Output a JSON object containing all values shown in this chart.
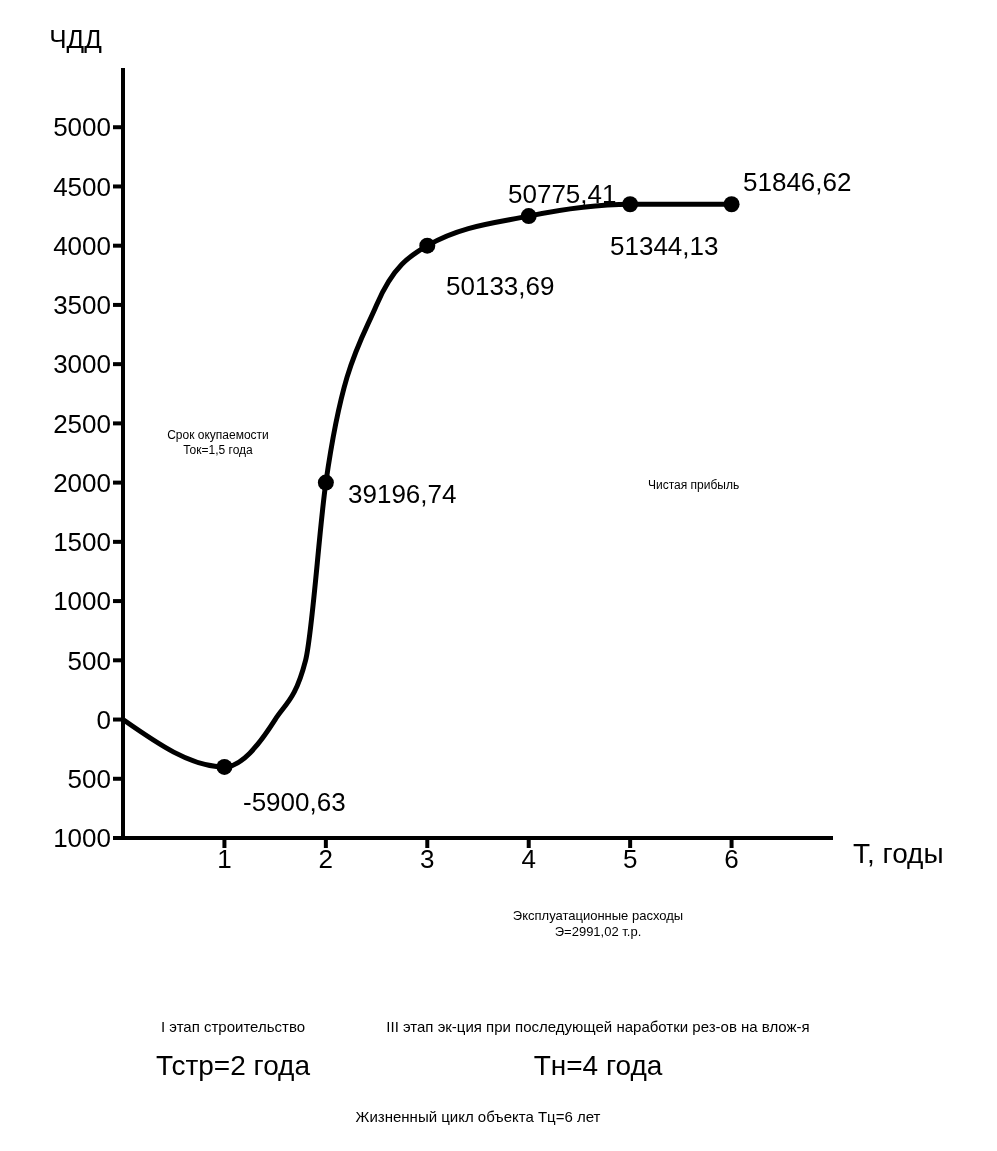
{
  "chart_data": {
    "type": "line",
    "xlabel": "Т, годы",
    "ylabel": "ЧДД",
    "x": [
      0,
      1,
      1.5,
      1.8,
      2,
      2.5,
      3,
      4,
      5,
      6
    ],
    "series": [
      {
        "color": "#000000",
        "values": [
          0,
          -400,
          0,
          500,
          2000,
          3500,
          4000,
          4250,
          4350,
          4350
        ]
      }
    ],
    "xlim": [
      0,
      7
    ],
    "xticks": [
      1,
      2,
      3,
      4,
      5,
      6
    ],
    "ylim": [
      -1000,
      5500
    ],
    "yticks": [
      {
        "value": -1000,
        "label": "1000"
      },
      {
        "value": -500,
        "label": "500"
      },
      0,
      500,
      1000,
      1500,
      2000,
      2500,
      3000,
      3500,
      4000,
      4500,
      5000
    ],
    "grid": false,
    "marker": "circle",
    "line_style": "solid",
    "legend": false,
    "annotations": [
      "Срок окупаемости\nТок=1,5 года",
      "Чистая прибыль",
      "Эксплуатационные расходы\nЭ=2991,02 т.р.",
      "I этап строительство",
      "III этап эк-ция при последующей наработки рез-ов на влож-я",
      "Тстр=2 года",
      "Тн=4 года",
      "Жизненный цикл объекта Тц=6 лет",
      "-5900,63",
      "39196,74",
      "50133,69",
      "50775,41",
      "51344,13",
      "51846,62"
    ]
  }
}
